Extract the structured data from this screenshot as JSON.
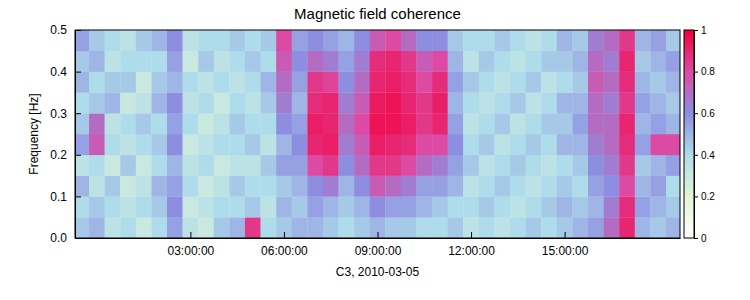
{
  "chart_data": {
    "type": "heatmap",
    "title": "Magnetic field coherence",
    "x_label": "C3, 2010-03-05",
    "y_label": "Frequency [Hz]",
    "xlim": [
      -0.7,
      18.7
    ],
    "xticks": [
      {
        "value": 3,
        "label": "03:00:00"
      },
      {
        "value": 6,
        "label": "06:00:00"
      },
      {
        "value": 9,
        "label": "09:00:00"
      },
      {
        "value": 12,
        "label": "12:00:00"
      },
      {
        "value": 15,
        "label": "15:00:00"
      }
    ],
    "ylim": [
      0,
      0.5
    ],
    "yticks": [
      {
        "value": 0,
        "label": "0.0"
      },
      0.1,
      0.2,
      0.3,
      0.4,
      {
        "value": 0.5,
        "label": "0.5"
      }
    ],
    "zlim": [
      0,
      1
    ],
    "zticks": [
      0,
      0.2,
      0.4,
      0.6,
      0.8,
      1
    ],
    "x": [
      -0.5,
      0,
      0.5,
      1,
      1.5,
      2,
      2.5,
      3,
      3.5,
      4,
      4.5,
      5,
      5.5,
      6,
      6.5,
      7,
      7.5,
      8,
      8.5,
      9,
      9.5,
      10,
      10.5,
      11,
      11.5,
      12,
      12.5,
      13,
      13.5,
      14,
      14.5,
      15,
      15.5,
      16,
      16.5,
      17,
      17.5,
      18,
      18.5
    ],
    "y": [
      0.025,
      0.075,
      0.125,
      0.175,
      0.225,
      0.275,
      0.325,
      0.375,
      0.425,
      0.475
    ],
    "values": [
      [
        0.45,
        0.5,
        0.35,
        0.4,
        0.3,
        0.4,
        0.55,
        0.35,
        0.3,
        0.45,
        0.5,
        0.85,
        0.4,
        0.45,
        0.5,
        0.5,
        0.45,
        0.4,
        0.45,
        0.5,
        0.45,
        0.45,
        0.4,
        0.4,
        0.45,
        0.35,
        0.4,
        0.35,
        0.4,
        0.45,
        0.4,
        0.45,
        0.5,
        0.55,
        0.7,
        0.9,
        0.5,
        0.45,
        0.5
      ],
      [
        0.4,
        0.45,
        0.4,
        0.35,
        0.4,
        0.45,
        0.6,
        0.3,
        0.35,
        0.4,
        0.4,
        0.45,
        0.35,
        0.5,
        0.45,
        0.55,
        0.5,
        0.45,
        0.5,
        0.6,
        0.55,
        0.55,
        0.5,
        0.45,
        0.4,
        0.4,
        0.45,
        0.4,
        0.35,
        0.4,
        0.45,
        0.5,
        0.45,
        0.5,
        0.65,
        0.88,
        0.55,
        0.5,
        0.45
      ],
      [
        0.5,
        0.35,
        0.45,
        0.3,
        0.35,
        0.5,
        0.55,
        0.4,
        0.3,
        0.35,
        0.45,
        0.4,
        0.4,
        0.45,
        0.5,
        0.6,
        0.65,
        0.5,
        0.6,
        0.75,
        0.7,
        0.65,
        0.55,
        0.55,
        0.5,
        0.35,
        0.4,
        0.45,
        0.4,
        0.35,
        0.4,
        0.45,
        0.4,
        0.55,
        0.6,
        0.8,
        0.5,
        0.55,
        0.4
      ],
      [
        0.35,
        0.4,
        0.3,
        0.45,
        0.3,
        0.4,
        0.5,
        0.35,
        0.4,
        0.3,
        0.35,
        0.35,
        0.45,
        0.55,
        0.55,
        0.8,
        0.85,
        0.6,
        0.7,
        0.85,
        0.85,
        0.8,
        0.7,
        0.65,
        0.55,
        0.45,
        0.35,
        0.4,
        0.45,
        0.4,
        0.35,
        0.4,
        0.45,
        0.6,
        0.65,
        0.85,
        0.45,
        0.5,
        0.55
      ],
      [
        0.55,
        0.75,
        0.4,
        0.35,
        0.4,
        0.45,
        0.6,
        0.3,
        0.35,
        0.4,
        0.4,
        0.45,
        0.35,
        0.5,
        0.6,
        0.9,
        0.92,
        0.65,
        0.75,
        0.92,
        0.9,
        0.88,
        0.8,
        0.8,
        0.6,
        0.4,
        0.45,
        0.35,
        0.4,
        0.45,
        0.4,
        0.5,
        0.5,
        0.65,
        0.7,
        0.88,
        0.55,
        0.8,
        0.8
      ],
      [
        0.45,
        0.7,
        0.35,
        0.4,
        0.45,
        0.4,
        0.55,
        0.4,
        0.3,
        0.35,
        0.45,
        0.4,
        0.4,
        0.6,
        0.55,
        0.92,
        0.9,
        0.7,
        0.8,
        0.95,
        0.95,
        0.92,
        0.85,
        0.9,
        0.55,
        0.35,
        0.4,
        0.45,
        0.35,
        0.4,
        0.45,
        0.45,
        0.55,
        0.7,
        0.7,
        0.9,
        0.5,
        0.55,
        0.5
      ],
      [
        0.4,
        0.45,
        0.5,
        0.3,
        0.35,
        0.5,
        0.6,
        0.35,
        0.4,
        0.3,
        0.4,
        0.35,
        0.45,
        0.65,
        0.5,
        0.88,
        0.9,
        0.65,
        0.75,
        0.93,
        0.95,
        0.9,
        0.85,
        0.92,
        0.5,
        0.4,
        0.35,
        0.4,
        0.45,
        0.35,
        0.4,
        0.5,
        0.5,
        0.7,
        0.65,
        0.85,
        0.55,
        0.5,
        0.45
      ],
      [
        0.5,
        0.4,
        0.45,
        0.45,
        0.3,
        0.45,
        0.5,
        0.4,
        0.35,
        0.4,
        0.35,
        0.4,
        0.5,
        0.7,
        0.55,
        0.85,
        0.82,
        0.6,
        0.7,
        0.9,
        0.92,
        0.88,
        0.8,
        0.88,
        0.55,
        0.45,
        0.4,
        0.35,
        0.4,
        0.45,
        0.35,
        0.4,
        0.45,
        0.75,
        0.7,
        0.88,
        0.5,
        0.45,
        0.5
      ],
      [
        0.45,
        0.5,
        0.35,
        0.4,
        0.4,
        0.4,
        0.55,
        0.3,
        0.45,
        0.35,
        0.4,
        0.45,
        0.4,
        0.75,
        0.6,
        0.7,
        0.65,
        0.55,
        0.65,
        0.88,
        0.9,
        0.85,
        0.75,
        0.8,
        0.5,
        0.35,
        0.45,
        0.4,
        0.35,
        0.4,
        0.45,
        0.45,
        0.5,
        0.7,
        0.65,
        0.9,
        0.45,
        0.5,
        0.55
      ],
      [
        0.55,
        0.45,
        0.4,
        0.35,
        0.45,
        0.5,
        0.6,
        0.35,
        0.4,
        0.4,
        0.45,
        0.4,
        0.45,
        0.8,
        0.55,
        0.6,
        0.55,
        0.5,
        0.6,
        0.75,
        0.8,
        0.7,
        0.6,
        0.6,
        0.45,
        0.4,
        0.4,
        0.45,
        0.4,
        0.35,
        0.4,
        0.5,
        0.45,
        0.65,
        0.7,
        0.85,
        0.5,
        0.55,
        0.45
      ]
    ]
  }
}
